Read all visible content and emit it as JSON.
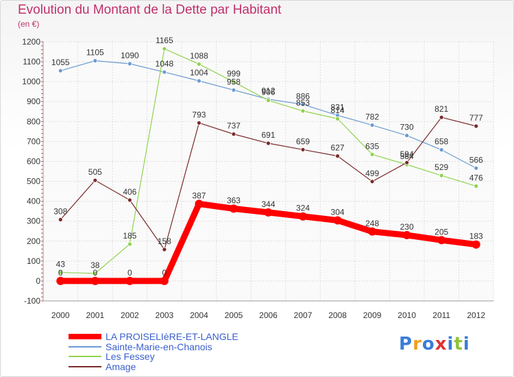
{
  "chart_data": {
    "type": "line",
    "title": "Evolution du Montant de la Dette par Habitant",
    "subtitle": "(en €)",
    "x": [
      "2000",
      "2001",
      "2002",
      "2003",
      "2004",
      "2005",
      "2006",
      "2007",
      "2008",
      "2009",
      "2010",
      "2011",
      "2012"
    ],
    "ylim": [
      -100,
      1200
    ],
    "yticks": [
      -100,
      0,
      100,
      200,
      300,
      400,
      500,
      600,
      700,
      800,
      900,
      1000,
      1100,
      1200
    ],
    "grid": true,
    "legend_position": "bottom-left",
    "series": [
      {
        "name": "LA PROISELIèRE-ET-LANGLE",
        "color": "#ff0000",
        "values": [
          0,
          0,
          0,
          0,
          387,
          363,
          344,
          324,
          304,
          248,
          230,
          205,
          183
        ],
        "labels": [
          "0",
          "0",
          "0",
          "0",
          "387",
          "363",
          "344",
          "324",
          "304",
          "248",
          "230",
          "205",
          "183"
        ]
      },
      {
        "name": "Sainte-Marie-en-Chanois",
        "color": "#6b9bd1",
        "values": [
          1055,
          1105,
          1090,
          1048,
          1004,
          958,
          912,
          886,
          831,
          782,
          730,
          658,
          566
        ],
        "labels": [
          "1055",
          "1105",
          "1090",
          "1048",
          "1004",
          "958",
          "912",
          "886",
          "831",
          "782",
          "730",
          "658",
          "566"
        ]
      },
      {
        "name": "Les Fessey",
        "color": "#8fd34e",
        "values": [
          43,
          38,
          185,
          1165,
          1088,
          999,
          906,
          853,
          814,
          635,
          584,
          529,
          476
        ],
        "labels": [
          "43",
          "38",
          "185",
          "1165",
          "1088",
          "999",
          "906",
          "853",
          "814",
          "635",
          "584",
          "529",
          "476"
        ]
      },
      {
        "name": "Amage",
        "color": "#7a2a2a",
        "values": [
          308,
          505,
          406,
          158,
          793,
          737,
          691,
          659,
          627,
          499,
          594,
          821,
          777
        ],
        "labels": [
          "308",
          "505",
          "406",
          "158",
          "793",
          "737",
          "691",
          "659",
          "627",
          "499",
          "594",
          "821",
          "777"
        ]
      }
    ]
  },
  "logo": {
    "letters": [
      "P",
      "r",
      "o",
      "x",
      "i",
      "t",
      "i"
    ],
    "colors": [
      "#3a7dd8",
      "#f0a020",
      "#3a7dd8",
      "#d33",
      "#3a7dd8",
      "#8fc43a",
      "#3a7dd8"
    ]
  }
}
